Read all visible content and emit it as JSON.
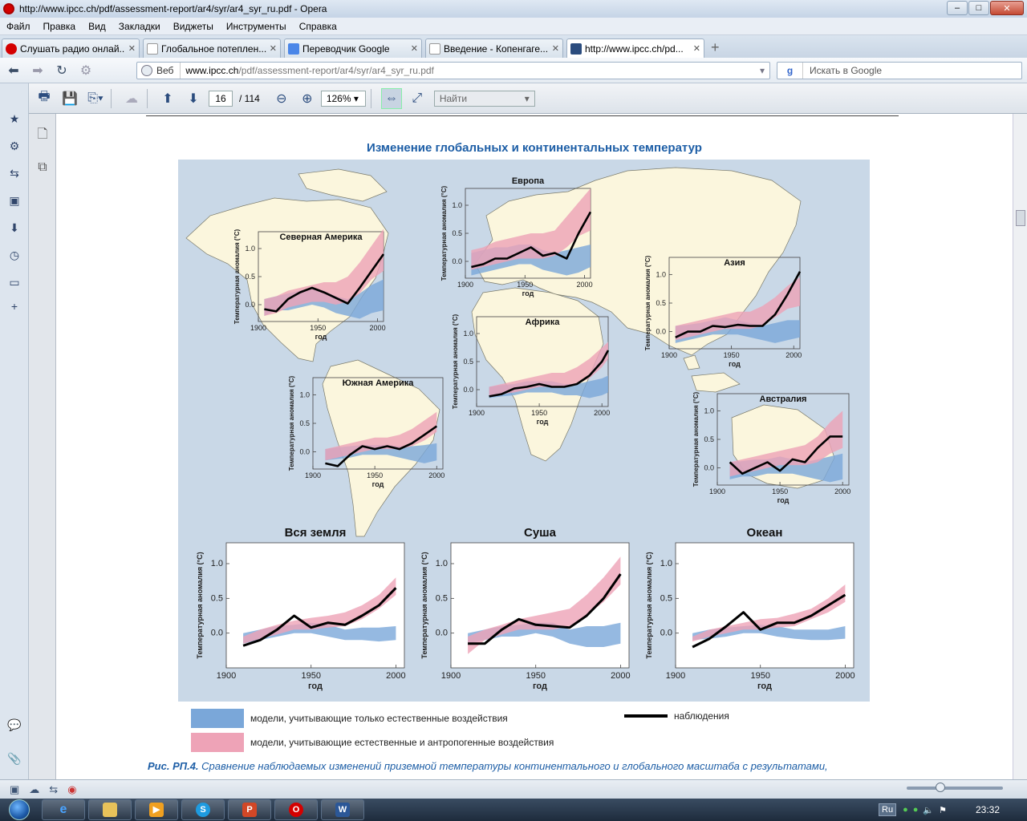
{
  "window": {
    "title": "http://www.ipcc.ch/pdf/assessment-report/ar4/syr/ar4_syr_ru.pdf - Opera"
  },
  "menu": [
    "Файл",
    "Правка",
    "Вид",
    "Закладки",
    "Виджеты",
    "Инструменты",
    "Справка"
  ],
  "tabs": [
    {
      "label": "Слушать радио онлай...",
      "color": "#d40000"
    },
    {
      "label": "Глобальное потеплен...",
      "color": "#ffffff"
    },
    {
      "label": "Переводчик Google",
      "color": "#4a86e8"
    },
    {
      "label": "Введение - Копенгаге...",
      "color": "#ffffff"
    },
    {
      "label": "http://www.ipcc.ch/pd...",
      "color": "#2b4c7e"
    }
  ],
  "address": {
    "mode": "Веб",
    "host": "www.ipcc.ch",
    "path": "/pdf/assessment-report/ar4/syr/ar4_syr_ru.pdf"
  },
  "search": {
    "engine": "g",
    "placeholder": "Искать в Google"
  },
  "pdf": {
    "page": "16",
    "total": "/ 114",
    "zoom": "126%",
    "find_placeholder": "Найти"
  },
  "figure": {
    "title": "Изменение глобальных и континентальных температур",
    "ylabel": "Температурная аномалия (°C)",
    "xlabel": "год",
    "legend": {
      "natural": "модели, учитывающие только естественные воздействия",
      "anthropogenic": "модели, учитывающие естественные и антропогенные воздействия",
      "observed": "наблюдения"
    },
    "colors": {
      "natural": "#7aa7d9",
      "anthropogenic": "#eea3b7",
      "observed": "#000000"
    }
  },
  "caption": {
    "label": "Рис. РП.4.",
    "text": "Сравнение наблюдаемых изменений приземной температуры континентального и глобального масштаба с результатами,"
  },
  "chart_data": [
    {
      "type": "line",
      "title": "Северная Америка",
      "xlim": [
        1900,
        2005
      ],
      "ylim": [
        -0.3,
        1.3
      ],
      "yticks": [
        0.0,
        0.5,
        1.0
      ],
      "xticks": [
        1900,
        1950,
        2000
      ],
      "x": [
        1905,
        1915,
        1925,
        1935,
        1945,
        1955,
        1965,
        1975,
        1985,
        1995,
        2005
      ],
      "observed": [
        -0.08,
        -0.12,
        0.1,
        0.22,
        0.3,
        0.22,
        0.12,
        0.02,
        0.3,
        0.6,
        0.9
      ],
      "natural": {
        "lo": [
          -0.2,
          -0.1,
          -0.1,
          -0.05,
          0.0,
          -0.05,
          -0.15,
          -0.2,
          -0.25,
          -0.15,
          -0.1
        ],
        "hi": [
          0.1,
          0.15,
          0.2,
          0.25,
          0.3,
          0.25,
          0.15,
          0.1,
          0.2,
          0.35,
          0.45
        ]
      },
      "anthropogenic": {
        "lo": [
          -0.2,
          -0.15,
          -0.05,
          0.0,
          0.05,
          0.05,
          0.0,
          0.05,
          0.2,
          0.45,
          0.6
        ],
        "hi": [
          0.1,
          0.15,
          0.25,
          0.3,
          0.35,
          0.4,
          0.4,
          0.5,
          0.75,
          1.05,
          1.35
        ]
      }
    },
    {
      "type": "line",
      "title": "Европа",
      "xlim": [
        1900,
        2005
      ],
      "ylim": [
        -0.3,
        1.3
      ],
      "yticks": [
        0.0,
        0.5,
        1.0
      ],
      "xticks": [
        1900,
        1950,
        2000
      ],
      "x": [
        1905,
        1915,
        1925,
        1935,
        1945,
        1955,
        1965,
        1975,
        1985,
        1995,
        2005
      ],
      "observed": [
        -0.1,
        -0.05,
        0.05,
        0.05,
        0.15,
        0.25,
        0.1,
        0.15,
        0.05,
        0.5,
        0.88
      ],
      "natural": {
        "lo": [
          -0.25,
          -0.2,
          -0.15,
          -0.1,
          -0.05,
          -0.05,
          -0.15,
          -0.2,
          -0.25,
          -0.2,
          -0.1
        ],
        "hi": [
          0.15,
          0.2,
          0.25,
          0.25,
          0.3,
          0.3,
          0.2,
          0.15,
          0.2,
          0.25,
          0.3
        ]
      },
      "anthropogenic": {
        "lo": [
          -0.15,
          -0.1,
          -0.05,
          0.0,
          0.05,
          0.05,
          0.05,
          0.1,
          0.25,
          0.45,
          0.55
        ],
        "hi": [
          0.2,
          0.25,
          0.35,
          0.4,
          0.45,
          0.5,
          0.5,
          0.55,
          0.8,
          1.05,
          1.3
        ]
      }
    },
    {
      "type": "line",
      "title": "Азия",
      "xlim": [
        1900,
        2005
      ],
      "ylim": [
        -0.3,
        1.3
      ],
      "yticks": [
        0.0,
        0.5,
        1.0
      ],
      "xticks": [
        1900,
        1950,
        2000
      ],
      "x": [
        1905,
        1915,
        1925,
        1935,
        1945,
        1955,
        1965,
        1975,
        1985,
        1995,
        2005
      ],
      "observed": [
        -0.1,
        0.0,
        0.0,
        0.1,
        0.08,
        0.12,
        0.1,
        0.1,
        0.3,
        0.65,
        1.05
      ],
      "natural": {
        "lo": [
          -0.2,
          -0.15,
          -0.1,
          -0.05,
          -0.05,
          -0.05,
          -0.1,
          -0.15,
          -0.2,
          -0.15,
          -0.1
        ],
        "hi": [
          0.1,
          0.12,
          0.15,
          0.2,
          0.25,
          0.2,
          0.15,
          0.1,
          0.15,
          0.2,
          0.2
        ]
      },
      "anthropogenic": {
        "lo": [
          -0.15,
          -0.1,
          -0.05,
          0.0,
          0.05,
          0.05,
          0.05,
          0.1,
          0.25,
          0.4,
          0.45
        ],
        "hi": [
          0.1,
          0.15,
          0.2,
          0.25,
          0.3,
          0.35,
          0.35,
          0.45,
          0.6,
          0.8,
          0.95
        ]
      }
    },
    {
      "type": "line",
      "title": "Африка",
      "xlim": [
        1900,
        2005
      ],
      "ylim": [
        -0.3,
        1.3
      ],
      "yticks": [
        0.0,
        0.5,
        1.0
      ],
      "xticks": [
        1900,
        1950,
        2000
      ],
      "x": [
        1910,
        1920,
        1930,
        1940,
        1950,
        1960,
        1970,
        1980,
        1990,
        2000,
        2005
      ],
      "observed": [
        -0.12,
        -0.08,
        0.02,
        0.05,
        0.1,
        0.05,
        0.05,
        0.1,
        0.25,
        0.5,
        0.7
      ],
      "natural": {
        "lo": [
          -0.15,
          -0.12,
          -0.1,
          -0.05,
          -0.05,
          -0.05,
          -0.1,
          -0.1,
          -0.15,
          -0.1,
          -0.05
        ],
        "hi": [
          0.05,
          0.08,
          0.1,
          0.15,
          0.15,
          0.15,
          0.1,
          0.1,
          0.15,
          0.2,
          0.25
        ]
      },
      "anthropogenic": {
        "lo": [
          -0.1,
          -0.08,
          -0.05,
          0.0,
          0.05,
          0.05,
          0.05,
          0.1,
          0.2,
          0.4,
          0.55
        ],
        "hi": [
          0.05,
          0.1,
          0.15,
          0.2,
          0.25,
          0.3,
          0.3,
          0.4,
          0.55,
          0.75,
          0.85
        ]
      }
    },
    {
      "type": "line",
      "title": "Южная Америка",
      "xlim": [
        1900,
        2005
      ],
      "ylim": [
        -0.3,
        1.3
      ],
      "yticks": [
        0.0,
        0.5,
        1.0
      ],
      "xticks": [
        1900,
        1950,
        2000
      ],
      "x": [
        1910,
        1920,
        1930,
        1940,
        1950,
        1960,
        1970,
        1980,
        1990,
        2000
      ],
      "observed": [
        -0.2,
        -0.25,
        -0.05,
        0.1,
        0.05,
        0.1,
        0.05,
        0.15,
        0.3,
        0.45
      ],
      "natural": {
        "lo": [
          -0.15,
          -0.12,
          -0.1,
          -0.05,
          -0.05,
          -0.05,
          -0.1,
          -0.15,
          -0.2,
          -0.15
        ],
        "hi": [
          0.05,
          0.08,
          0.1,
          0.12,
          0.12,
          0.12,
          0.1,
          0.1,
          0.12,
          0.15
        ]
      },
      "anthropogenic": {
        "lo": [
          -0.15,
          -0.1,
          -0.05,
          0.0,
          0.05,
          0.05,
          0.05,
          0.1,
          0.2,
          0.35
        ],
        "hi": [
          0.05,
          0.1,
          0.15,
          0.2,
          0.25,
          0.25,
          0.3,
          0.4,
          0.55,
          0.7
        ]
      }
    },
    {
      "type": "line",
      "title": "Австралия",
      "xlim": [
        1900,
        2005
      ],
      "ylim": [
        -0.3,
        1.3
      ],
      "yticks": [
        0.0,
        0.5,
        1.0
      ],
      "xticks": [
        1900,
        1950,
        2000
      ],
      "x": [
        1910,
        1920,
        1930,
        1940,
        1950,
        1960,
        1970,
        1980,
        1990,
        2000
      ],
      "observed": [
        0.1,
        -0.1,
        0.0,
        0.1,
        -0.05,
        0.15,
        0.1,
        0.35,
        0.55,
        0.55
      ],
      "natural": {
        "lo": [
          -0.2,
          -0.15,
          -0.15,
          -0.1,
          -0.1,
          -0.1,
          -0.15,
          -0.2,
          -0.25,
          -0.2
        ],
        "hi": [
          0.1,
          0.12,
          0.15,
          0.15,
          0.2,
          0.15,
          0.1,
          0.15,
          0.2,
          0.25
        ]
      },
      "anthropogenic": {
        "lo": [
          -0.15,
          -0.1,
          -0.05,
          0.0,
          0.05,
          0.05,
          0.05,
          0.1,
          0.25,
          0.35
        ],
        "hi": [
          0.1,
          0.15,
          0.2,
          0.25,
          0.3,
          0.35,
          0.4,
          0.55,
          0.8,
          1.0
        ]
      }
    },
    {
      "type": "line",
      "title": "Вся земля",
      "xlim": [
        1900,
        2005
      ],
      "ylim": [
        -0.5,
        1.3
      ],
      "yticks": [
        0.0,
        0.5,
        1.0
      ],
      "xticks": [
        1900,
        1950,
        2000
      ],
      "x": [
        1910,
        1920,
        1930,
        1940,
        1950,
        1960,
        1970,
        1980,
        1990,
        2000
      ],
      "observed": [
        -0.18,
        -0.1,
        0.05,
        0.25,
        0.08,
        0.15,
        0.12,
        0.25,
        0.4,
        0.65
      ],
      "natural": {
        "lo": [
          -0.15,
          -0.1,
          -0.05,
          0.0,
          0.0,
          -0.05,
          -0.1,
          -0.1,
          -0.12,
          -0.1
        ],
        "hi": [
          0.0,
          0.05,
          0.1,
          0.12,
          0.15,
          0.12,
          0.05,
          0.08,
          0.08,
          0.1
        ]
      },
      "anthropogenic": {
        "lo": [
          -0.15,
          -0.08,
          -0.02,
          0.05,
          0.05,
          0.08,
          0.1,
          0.2,
          0.35,
          0.55
        ],
        "hi": [
          -0.05,
          0.05,
          0.12,
          0.18,
          0.22,
          0.25,
          0.3,
          0.4,
          0.55,
          0.8
        ]
      }
    },
    {
      "type": "line",
      "title": "Суша",
      "xlim": [
        1900,
        2005
      ],
      "ylim": [
        -0.5,
        1.3
      ],
      "yticks": [
        0.0,
        0.5,
        1.0
      ],
      "xticks": [
        1900,
        1950,
        2000
      ],
      "x": [
        1910,
        1920,
        1930,
        1940,
        1950,
        1960,
        1970,
        1980,
        1990,
        2000
      ],
      "observed": [
        -0.15,
        -0.15,
        0.05,
        0.2,
        0.12,
        0.1,
        0.08,
        0.25,
        0.5,
        0.85
      ],
      "natural": {
        "lo": [
          -0.15,
          -0.1,
          -0.05,
          -0.05,
          0.0,
          -0.05,
          -0.15,
          -0.2,
          -0.2,
          -0.15
        ],
        "hi": [
          0.0,
          0.05,
          0.1,
          0.12,
          0.15,
          0.15,
          0.05,
          0.1,
          0.1,
          0.15
        ]
      },
      "anthropogenic": {
        "lo": [
          -0.3,
          -0.1,
          -0.02,
          0.05,
          0.05,
          0.05,
          0.1,
          0.25,
          0.45,
          0.7
        ],
        "hi": [
          -0.05,
          0.05,
          0.12,
          0.2,
          0.25,
          0.3,
          0.35,
          0.55,
          0.8,
          1.1
        ]
      }
    },
    {
      "type": "line",
      "title": "Океан",
      "xlim": [
        1900,
        2005
      ],
      "ylim": [
        -0.5,
        1.3
      ],
      "yticks": [
        0.0,
        0.5,
        1.0
      ],
      "xticks": [
        1900,
        1950,
        2000
      ],
      "x": [
        1910,
        1920,
        1930,
        1940,
        1950,
        1960,
        1970,
        1980,
        1990,
        2000
      ],
      "observed": [
        -0.2,
        -0.08,
        0.1,
        0.3,
        0.05,
        0.15,
        0.15,
        0.25,
        0.4,
        0.55
      ],
      "natural": {
        "lo": [
          -0.1,
          -0.08,
          -0.05,
          0.0,
          0.0,
          -0.05,
          -0.08,
          -0.1,
          -0.1,
          -0.08
        ],
        "hi": [
          0.0,
          0.05,
          0.08,
          0.1,
          0.12,
          0.1,
          0.05,
          0.05,
          0.05,
          0.1
        ]
      },
      "anthropogenic": {
        "lo": [
          -0.12,
          -0.05,
          0.0,
          0.05,
          0.05,
          0.08,
          0.1,
          0.2,
          0.3,
          0.45
        ],
        "hi": [
          -0.05,
          0.05,
          0.1,
          0.15,
          0.2,
          0.22,
          0.28,
          0.35,
          0.5,
          0.7
        ]
      }
    }
  ],
  "taskbar": {
    "lang": "Ru",
    "clock": "23:32"
  }
}
